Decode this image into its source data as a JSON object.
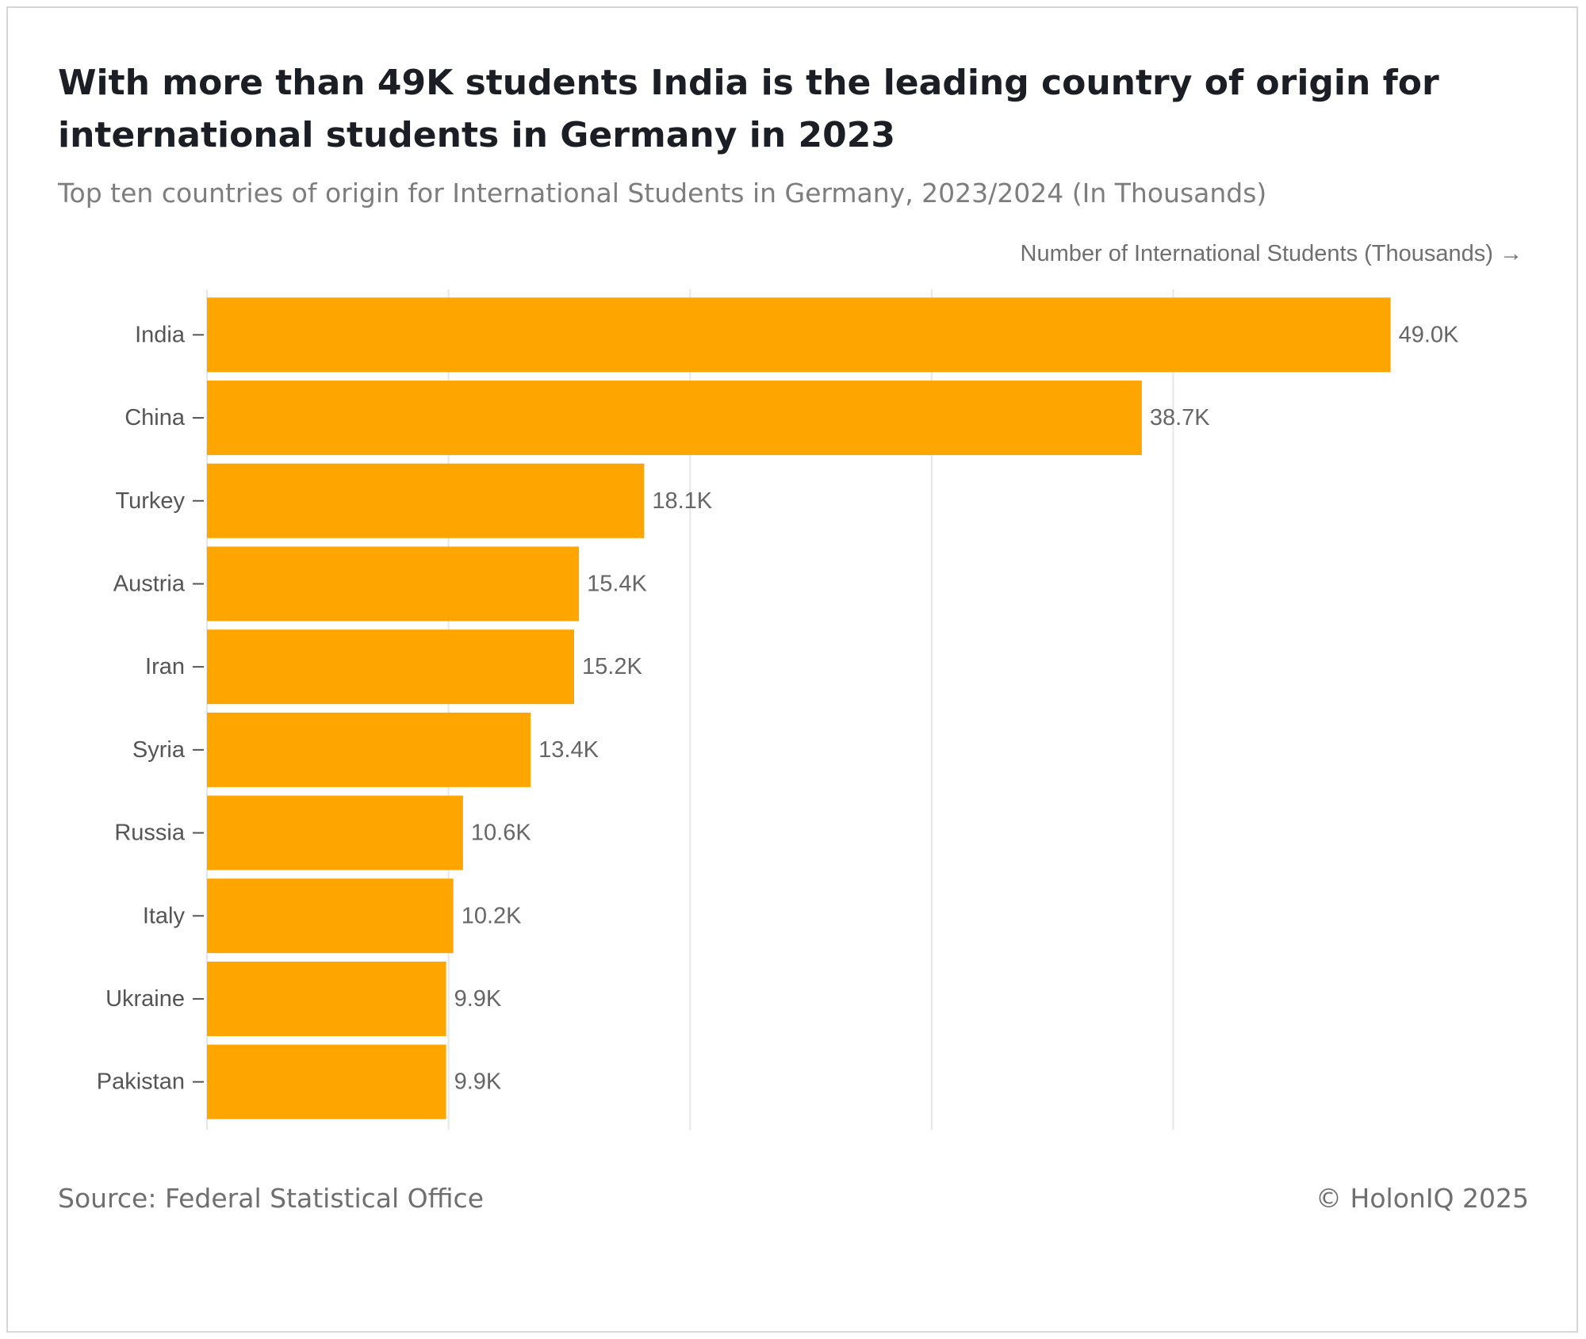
{
  "title": "With more than 49K students India is the leading country of origin for international students in Germany in 2023",
  "subtitle": "Top ten countries of origin for International Students in Germany, 2023/2024 (In Thousands)",
  "source": "Source: Federal Statistical Office",
  "copyright": "© HolonIQ 2025",
  "colors": {
    "bar": "#ffa500",
    "grid": "#e6e6e6",
    "label": "#555555",
    "value_label": "#666666",
    "tick": "#555555"
  },
  "chart_data": {
    "type": "bar",
    "orientation": "horizontal",
    "title": "With more than 49K students India is the leading country of origin for international students in Germany in 2023",
    "subtitle": "Top ten countries of origin for International Students in Germany, 2023/2024 (In Thousands)",
    "xlabel": "Number of International Students (Thousands) →",
    "ylabel": "",
    "categories": [
      "India",
      "China",
      "Turkey",
      "Austria",
      "Iran",
      "Syria",
      "Russia",
      "Italy",
      "Ukraine",
      "Pakistan"
    ],
    "values": [
      49.0,
      38.7,
      18.1,
      15.4,
      15.2,
      13.4,
      10.6,
      10.2,
      9.9,
      9.9
    ],
    "value_labels": [
      "49.0K",
      "38.7K",
      "18.1K",
      "15.4K",
      "15.2K",
      "13.4K",
      "10.6K",
      "10.2K",
      "9.9K",
      "9.9K"
    ],
    "xlim": [
      0,
      52
    ],
    "grid_x_at": [
      0,
      10,
      20,
      30,
      40
    ],
    "x_tick_labels_shown": false,
    "grid": true,
    "legend": "none"
  }
}
